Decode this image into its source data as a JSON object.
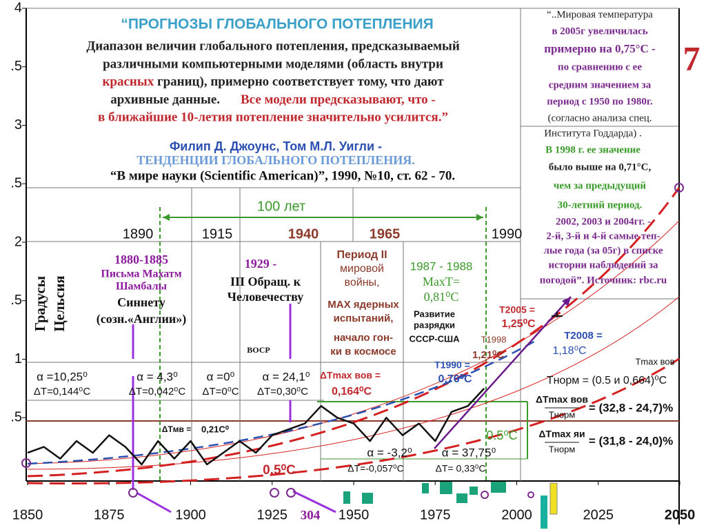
{
  "header": {
    "title": "“ПРОГНОЗЫ ГЛОБАЛЬНОГО  ПОТЕПЛЕНИЯ",
    "quote": [
      "Диапазон величин глобального потепления, предсказываемый",
      "различными компьютерными моделями (область внутри",
      "красных",
      "границ), примерно соответствует тому, что дают",
      "архивные данные.",
      "Все модели предсказывают, что -",
      "в ближайшие 10-летия потепление значительно усилится.”"
    ],
    "authors": "Филип Д. Джоунс, Том М.Л. Уигли -",
    "article": "ТЕНДЕНЦИИ ГЛОБАЛЬНОГО  ПОТЕПЛЕНИЯ.",
    "source": "“В мире науки (Scientific American)”, 1990, №10, ст. 62 - 70."
  },
  "sidebar": {
    "lines": [
      "“..Мировая температура",
      "в 2005г увеличилась",
      "примерно на 0,75°С -",
      "по сравнению с ее",
      "средним значением за",
      "период с 1950 по 1980г.",
      "(согласно анализа спец.",
      "Института Годдарда) .",
      "В 1998 г. ее значение",
      "было выше на 0,71°С,",
      "чем за предыдущий",
      "30-летний период.",
      "2002, 2003 и 2004гг. -",
      "2-й, 3-й и 4-й самые теп-",
      "лые  года (за 05г) в списке",
      "истории наблюдений за",
      "погодой”. Источник: rbc.ru"
    ],
    "slide_number": "7"
  },
  "chart_data": {
    "type": "line",
    "x": [
      1850,
      1855,
      1860,
      1865,
      1870,
      1875,
      1880,
      1885,
      1890,
      1895,
      1900,
      1905,
      1910,
      1915,
      1920,
      1925,
      1930,
      1935,
      1940,
      1945,
      1950,
      1955,
      1960,
      1965,
      1970,
      1975,
      1980,
      1985,
      1990
    ],
    "series": [
      {
        "name": "Температура",
        "color": "#111111",
        "values": [
          0.2,
          0.25,
          0.15,
          0.3,
          0.2,
          0.35,
          0.25,
          0.1,
          0.3,
          0.15,
          0.3,
          0.1,
          0.2,
          0.3,
          0.2,
          0.35,
          0.4,
          0.45,
          0.6,
          0.5,
          0.45,
          0.3,
          0.5,
          0.35,
          0.45,
          0.3,
          0.55,
          0.6,
          0.75
        ]
      }
    ],
    "xlim": [
      1850,
      2050
    ],
    "xticks": [
      1850,
      1875,
      1900,
      1925,
      1950,
      1975,
      2000,
      2025,
      2050
    ],
    "ylim": [
      0,
      4
    ],
    "yticks": [
      {
        "value": 0.5,
        "label": ".5"
      },
      1,
      {
        "value": 1.5,
        "label": ".5"
      },
      2,
      {
        "value": 2.5,
        "label": ".5"
      },
      3,
      {
        "value": 3.5,
        "label": ".5"
      },
      4
    ],
    "annotations": [
      "100 лет",
      "1890",
      "1915",
      "1940",
      "1965",
      "1990",
      "Градусы",
      "Цельсия",
      "1880-1885",
      "Письма Махатм",
      "Шамбалы",
      "Синнету",
      "(созн.«Англии»)",
      "1929 -",
      "III Обращ. к",
      "Человечеству",
      "Период II",
      "мировой",
      "войны,",
      "MAX ядерных",
      "испытаний,",
      "начало гон-",
      "ки в космосе",
      "1987 - 1988",
      "MaxT=",
      "0,81⁰C",
      "Развитие",
      "разрядки",
      "СССР-США",
      "ВОСР",
      "T2005 =",
      "1,25⁰C",
      "T1998",
      "1,21⁰C",
      "T2008 =",
      "1,18⁰C",
      "T1990 =",
      "0,76⁰C",
      "α =10,25⁰",
      "ΔT=0,144⁰C",
      "α = 4,3⁰",
      "ΔT=0,042⁰C",
      "α =0⁰",
      "ΔT=0⁰C",
      "α = 24,1⁰",
      "ΔT=0,30⁰C",
      "ΔTmax вов =",
      "0,164⁰C",
      "Tmax вов",
      "Tнорм = (0.5 и 0,664)⁰C",
      "ΔTmax вов",
      "Tнорм",
      "= (32,8 - 24,7)%",
      "ΔTmax яи",
      "Tнорм",
      "= (31,8 - 24,0)%",
      "ΔTмв =",
      "0,21C⁰",
      "0.5⁰C",
      "0.5⁰C",
      "α = -3,2⁰",
      "α = 37,75⁰",
      "ΔT=-0,057⁰C",
      "ΔT= 0,33⁰C",
      "304"
    ]
  }
}
